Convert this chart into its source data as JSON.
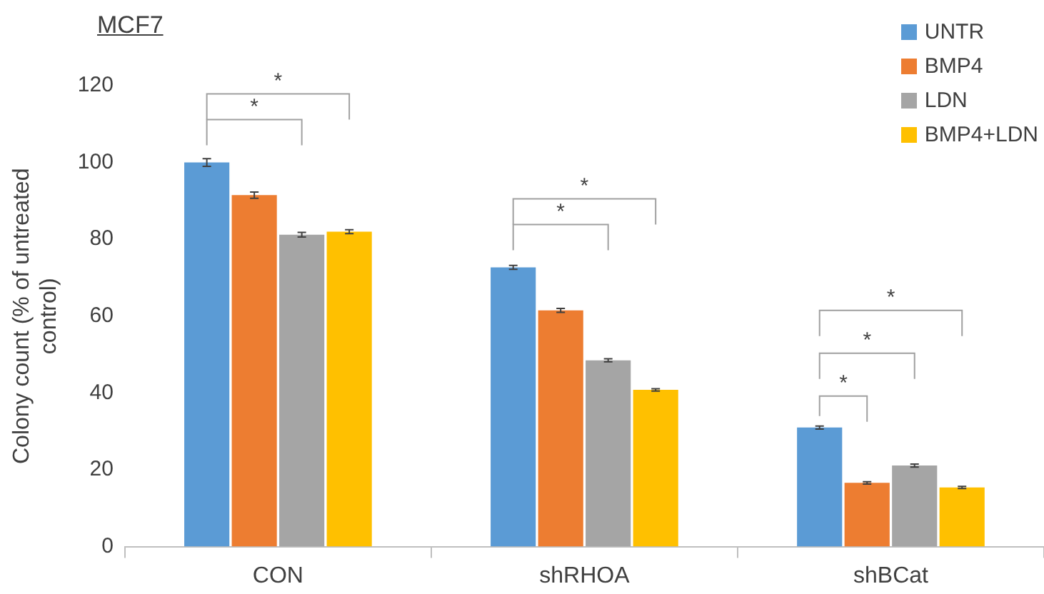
{
  "chart_data": {
    "type": "bar",
    "title": "MCF7",
    "ylabel": "Colony count (% of untreated control)",
    "categories": [
      "CON",
      "shRHOA",
      "shBCat"
    ],
    "series": [
      {
        "name": "UNTR",
        "color": "#5b9bd5",
        "values": [
          100,
          72.7,
          31
        ],
        "errors": [
          1,
          0.5,
          0.4
        ]
      },
      {
        "name": "BMP4",
        "color": "#ed7d31",
        "values": [
          91.5,
          61.5,
          16.6
        ],
        "errors": [
          0.8,
          0.5,
          0.3
        ]
      },
      {
        "name": "LDN",
        "color": "#a5a5a5",
        "values": [
          81.2,
          48.5,
          21.1
        ],
        "errors": [
          0.6,
          0.4,
          0.4
        ]
      },
      {
        "name": "BMP4+LDN",
        "color": "#ffc000",
        "values": [
          82,
          40.8,
          15.4
        ],
        "errors": [
          0.5,
          0.3,
          0.3
        ]
      }
    ],
    "ylim": [
      0,
      120
    ],
    "yticks": [
      0,
      20,
      40,
      60,
      80,
      100,
      120
    ],
    "grid": false,
    "legend": "top right",
    "annotations": [
      "*",
      "*",
      "*",
      "*",
      "*",
      "*",
      "*"
    ]
  }
}
